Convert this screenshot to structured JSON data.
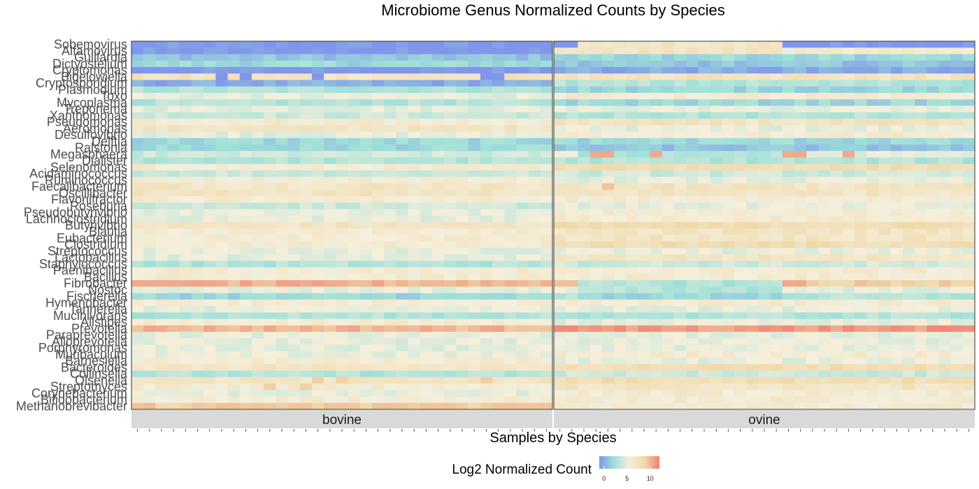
{
  "chart_data": {
    "type": "heatmap",
    "title": "Microbiome Genus Normalized Counts by Species",
    "xlabel": "Samples by Species",
    "ylabel": "",
    "legend": {
      "title": "Log2 Normalized Count",
      "ticks": [
        0,
        5,
        10
      ],
      "range": [
        -1,
        12
      ],
      "placement": "bottom",
      "colors": [
        "#8096eb",
        "#9fe0d8",
        "#f5efdc",
        "#f0d8a8",
        "#f08070"
      ]
    },
    "panels": [
      {
        "label": "bovine",
        "samples": 35
      },
      {
        "label": "ovine",
        "samples": 35
      }
    ],
    "genera": [
      "Sobemovirus",
      "Alfamovirus",
      "Guillardia",
      "Dictyostelium",
      "Cryptomonas",
      "Bigelowiella",
      "Cryptosporidium",
      "Plasmodium",
      "Toxo",
      "Mycoplasma",
      "Treponema",
      "Xanthomonas",
      "Pseudomonas",
      "Aeromonas",
      "Desulfovibrio",
      "Delftia",
      "Ralstonia",
      "Megasphaera",
      "Dialister",
      "Selenomonas",
      "Acidaminococcus",
      "Ruminococcus",
      "Faecalibacterium",
      "Oscillibacter",
      "Flavonifractor",
      "Roseburia",
      "Pseudobutyrivibrio",
      "Lachnoclostridium",
      "Butyrivibrio",
      "Blautia",
      "Eubacterium",
      "Clostridium",
      "Streptococcus",
      "Lactobacillus",
      "Staphylococcus",
      "Paenibacillus",
      "Bacillus",
      "Fibrobacter",
      "Nostoc",
      "Fischerella",
      "Hymenobacter",
      "Tannerella",
      "Mucinivorans",
      "Alistipes",
      "Prevotella",
      "Paraprevotella",
      "Alloprevotella",
      "Porphyromonas",
      "Muribaculum",
      "Barnesiella",
      "Bacteroides",
      "Collinsella",
      "Olsenella",
      "Streptomyces",
      "Corynebacterium",
      "Bifidobacterium",
      "Methanobrevibacter"
    ],
    "baseline": {
      "bovine": [
        -1,
        -1,
        1,
        2,
        -1,
        7,
        0,
        3,
        5,
        3,
        5,
        4,
        6,
        7,
        5,
        2,
        2,
        4,
        3,
        6,
        4,
        6,
        7,
        7,
        6,
        4,
        5,
        5,
        7,
        6,
        6,
        6,
        5,
        5,
        3,
        6,
        6,
        10,
        5,
        2,
        6,
        5,
        3,
        6,
        10,
        5,
        5,
        5,
        5,
        6,
        7,
        3,
        7,
        6,
        5,
        6,
        9
      ],
      "ovine": [
        -1,
        6,
        2,
        1,
        0,
        7,
        3,
        2,
        6,
        2,
        5,
        3,
        7,
        5,
        6,
        2,
        1,
        5,
        3,
        8,
        4,
        5,
        7,
        7,
        6,
        5,
        6,
        6,
        8,
        7,
        7,
        8,
        5,
        7,
        4,
        6,
        6,
        9,
        5,
        3,
        6,
        5,
        3,
        5,
        11,
        5,
        5,
        5,
        6,
        5,
        8,
        4,
        8,
        7,
        6,
        6,
        6
      ]
    },
    "ovine_subgroup": {
      "samples": [
        2,
        18
      ],
      "overrides": {
        "Sobemovirus": 7,
        "Alfamovirus": 7,
        "Megasphaera": 3,
        "Fibrobacter": 3,
        "Fischerella": 2,
        "Nostoc": 3,
        "Prevotella": 11
      }
    },
    "highlights": [
      {
        "panel": "ovine",
        "genus": "Megasphaera",
        "samples": [
          3,
          4,
          8,
          19,
          20,
          24
        ],
        "value": 10.5
      },
      {
        "panel": "ovine",
        "genus": "Fibrobacter",
        "samples": [
          19,
          20
        ],
        "value": 10.5
      },
      {
        "panel": "ovine",
        "genus": "Selenomonas",
        "samples": [
          3,
          4,
          5,
          8
        ],
        "value": 8.5
      },
      {
        "panel": "ovine",
        "genus": "Faecalibacterium",
        "samples": [
          4
        ],
        "value": 9.5
      },
      {
        "panel": "bovine",
        "genus": "Fibrobacter",
        "samples": [
          0,
          1,
          2,
          3,
          4
        ],
        "value": 10.5
      },
      {
        "panel": "bovine",
        "genus": "Methanobrevibacter",
        "samples": [
          10,
          13,
          16,
          17,
          20,
          22,
          24,
          25,
          26,
          30,
          31,
          33,
          34
        ],
        "value": 9.5
      },
      {
        "panel": "bovine",
        "genus": "Olsenella",
        "samples": [
          15,
          17,
          29
        ],
        "value": 9
      },
      {
        "panel": "bovine",
        "genus": "Bigelowiella",
        "samples": [
          7,
          9,
          15,
          29,
          30
        ],
        "value": -1
      },
      {
        "panel": "bovine",
        "genus": "Streptomyces",
        "samples": [
          11,
          14
        ],
        "value": 9
      }
    ]
  }
}
